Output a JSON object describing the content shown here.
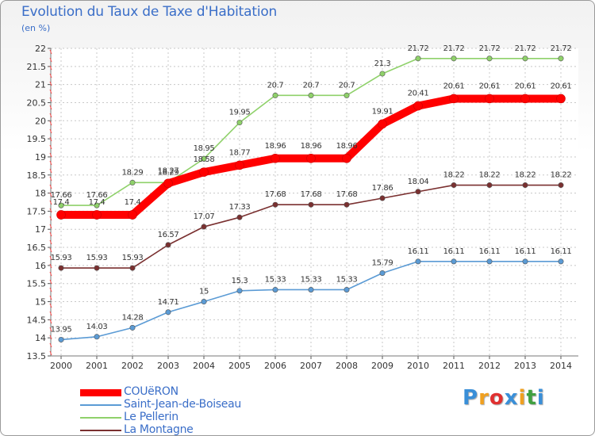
{
  "title": "Evolution du Taux de Taxe d'Habitation",
  "unit": "(en %)",
  "logo": {
    "text": "Proxiti",
    "letters": [
      {
        "ch": "P",
        "color": "#3a8fd8"
      },
      {
        "ch": "r",
        "color": "#f0a020"
      },
      {
        "ch": "o",
        "color": "#e03030"
      },
      {
        "ch": "x",
        "color": "#3a8fd8"
      },
      {
        "ch": "i",
        "color": "#f0a020"
      },
      {
        "ch": "t",
        "color": "#40a040"
      },
      {
        "ch": "i",
        "color": "#3a8fd8"
      }
    ]
  },
  "chart_data": {
    "type": "line",
    "title": "Evolution du Taux de Taxe d'Habitation",
    "ylabel": "(en %)",
    "xlabel": "",
    "x": [
      "2000",
      "2001",
      "2002",
      "2003",
      "2004",
      "2005",
      "2006",
      "2007",
      "2008",
      "2009",
      "2010",
      "2011",
      "2012",
      "2013",
      "2014"
    ],
    "ylim": [
      13.5,
      22
    ],
    "yticks": [
      "13.5",
      "14",
      "14.5",
      "15",
      "15.5",
      "16",
      "16.5",
      "17",
      "17.5",
      "18",
      "18.5",
      "19",
      "19.5",
      "20",
      "20.5",
      "21",
      "21.5",
      "22"
    ],
    "grid": true,
    "legend_position": "bottom-left",
    "series": [
      {
        "name": "COUëRON",
        "color": "#ff0000",
        "emphasis": true,
        "values": [
          17.4,
          17.4,
          17.4,
          18.27,
          18.58,
          18.77,
          18.96,
          18.96,
          18.96,
          19.91,
          20.41,
          20.61,
          20.61,
          20.61,
          20.61
        ],
        "labels": [
          "17.4",
          "17.4",
          "17.4",
          "18.27",
          "18.58",
          "18.77",
          "18.96",
          "18.96",
          "18.96",
          "19.91",
          "20.41",
          "20.61",
          "20.61",
          "20.61",
          "20.61"
        ]
      },
      {
        "name": "Saint-Jean-de-Boiseau",
        "color": "#5b9bd5",
        "emphasis": false,
        "values": [
          13.95,
          14.03,
          14.28,
          14.71,
          15,
          15.3,
          15.33,
          15.33,
          15.33,
          15.79,
          16.11,
          16.11,
          16.11,
          16.11,
          16.11
        ],
        "labels": [
          "13.95",
          "14.03",
          "14.28",
          "14.71",
          "15",
          "15.3",
          "15.33",
          "15.33",
          "15.33",
          "15.79",
          "16.11",
          "16.11",
          "16.11",
          "16.11",
          "16.11"
        ]
      },
      {
        "name": "Le Pellerin",
        "color": "#8fd16a",
        "emphasis": false,
        "values": [
          17.66,
          17.66,
          18.29,
          18.29,
          18.95,
          19.95,
          20.7,
          20.7,
          20.7,
          21.3,
          21.72,
          21.72,
          21.72,
          21.72,
          21.72
        ],
        "labels": [
          "17.66",
          "17.66",
          "18.29",
          "18.29",
          "18.95",
          "19.95",
          "20.7",
          "20.7",
          "20.7",
          "21.3",
          "21.72",
          "21.72",
          "21.72",
          "21.72",
          "21.72"
        ]
      },
      {
        "name": "La Montagne",
        "color": "#7a3030",
        "emphasis": false,
        "values": [
          15.93,
          15.93,
          15.93,
          16.57,
          17.07,
          17.33,
          17.68,
          17.68,
          17.68,
          17.86,
          18.04,
          18.22,
          18.22,
          18.22,
          18.22
        ],
        "labels": [
          "15.93",
          "15.93",
          "15.93",
          "16.57",
          "17.07",
          "17.33",
          "17.68",
          "17.68",
          "17.68",
          "17.86",
          "18.04",
          "18.22",
          "18.22",
          "18.22",
          "18.22"
        ]
      }
    ]
  }
}
